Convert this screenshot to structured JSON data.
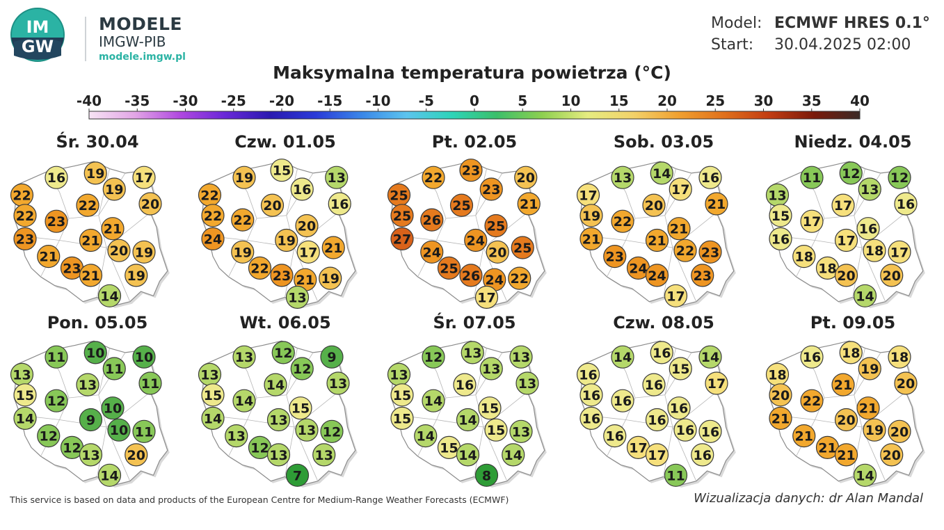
{
  "header": {
    "logo_text_top": "IM",
    "logo_text_bottom": "GW",
    "brand_title": "MODELE",
    "brand_subtitle": "IMGW-PIB",
    "brand_url": "modele.imgw.pl",
    "model_label": "Model:",
    "model_value": "ECMWF HRES 0.1°",
    "start_label": "Start:",
    "start_value": "30.04.2025 02:00"
  },
  "title": "Maksymalna temperatura powietrza (°C)",
  "legend": {
    "ticks": [
      "-40",
      "-35",
      "-30",
      "-25",
      "-20",
      "-15",
      "-10",
      "-5",
      "0",
      "5",
      "10",
      "15",
      "20",
      "25",
      "30",
      "35",
      "40"
    ],
    "colors": [
      "#f7e3f4",
      "#e2a6e6",
      "#b048e0",
      "#6a28d8",
      "#2a1ab0",
      "#2a3ad8",
      "#3a86e8",
      "#5cc4ee",
      "#2ed4b8",
      "#3cbf6a",
      "#8ed050",
      "#e6ec80",
      "#f2d26a",
      "#f0a030",
      "#e0701c",
      "#c23c12",
      "#7a1a0a",
      "#3a2a26"
    ]
  },
  "maps": [
    {
      "date": "Śr. 30.04",
      "values": [
        16,
        19,
        17,
        22,
        19,
        20,
        22,
        23,
        22,
        21,
        23,
        21,
        20,
        19,
        21,
        23,
        21,
        19,
        14
      ]
    },
    {
      "date": "Czw. 01.05",
      "values": [
        19,
        15,
        13,
        22,
        16,
        16,
        22,
        22,
        20,
        20,
        24,
        19,
        19,
        17,
        21,
        22,
        23,
        21,
        19,
        13
      ]
    },
    {
      "date": "Pt. 02.05",
      "values": [
        22,
        23,
        20,
        25,
        23,
        21,
        25,
        26,
        25,
        25,
        27,
        24,
        24,
        20,
        25,
        25,
        26,
        24,
        22,
        17
      ]
    },
    {
      "date": "Sob. 03.05",
      "values": [
        13,
        14,
        16,
        17,
        17,
        21,
        19,
        22,
        20,
        21,
        21,
        21,
        22,
        23,
        23,
        24,
        24,
        23,
        17
      ]
    },
    {
      "date": "Niedz. 04.05",
      "values": [
        11,
        12,
        12,
        13,
        13,
        16,
        15,
        17,
        17,
        16,
        16,
        17,
        18,
        17,
        18,
        18,
        20,
        20,
        14
      ]
    },
    {
      "date": "Pon. 05.05",
      "values": [
        11,
        10,
        10,
        13,
        11,
        11,
        15,
        12,
        13,
        10,
        14,
        9,
        10,
        11,
        12,
        12,
        13,
        20,
        14
      ]
    },
    {
      "date": "Wt. 06.05",
      "values": [
        13,
        12,
        9,
        13,
        12,
        13,
        15,
        14,
        14,
        15,
        14,
        13,
        13,
        12,
        13,
        12,
        13,
        13,
        7
      ]
    },
    {
      "date": "Śr. 07.05",
      "values": [
        12,
        13,
        13,
        13,
        13,
        13,
        15,
        14,
        16,
        15,
        15,
        14,
        15,
        13,
        14,
        15,
        14,
        14,
        8
      ]
    },
    {
      "date": "Czw. 08.05",
      "values": [
        14,
        16,
        14,
        16,
        15,
        17,
        16,
        16,
        16,
        16,
        16,
        16,
        16,
        16,
        16,
        17,
        17,
        16,
        11
      ]
    },
    {
      "date": "Pt. 09.05",
      "values": [
        16,
        18,
        18,
        18,
        19,
        20,
        20,
        22,
        21,
        21,
        21,
        20,
        19,
        20,
        21,
        21,
        21,
        20,
        14
      ]
    }
  ],
  "footer": {
    "attribution": "This service is based on data and products of the European Centre for Medium-Range Weather Forecasts (ECMWF)",
    "author": "Wizualizacja danych: dr Alan Mandal"
  }
}
